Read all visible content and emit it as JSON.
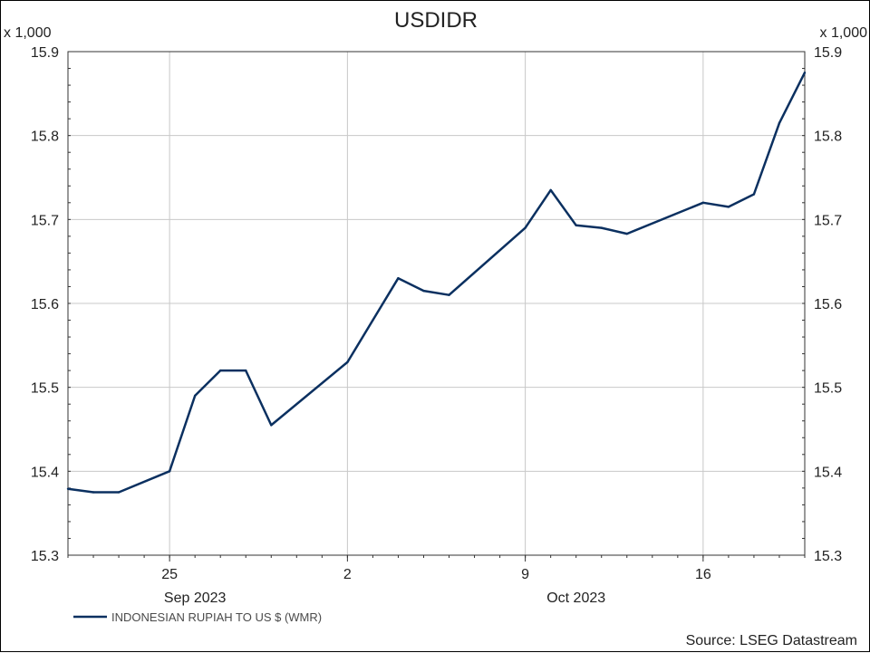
{
  "chart_data": {
    "type": "line",
    "title": "USDIDR",
    "y_multiplier_label": "x 1,000",
    "ylim": [
      15.3,
      15.9
    ],
    "y_ticks": [
      "15.3",
      "15.4",
      "15.5",
      "15.6",
      "15.7",
      "15.8",
      "15.9"
    ],
    "xlim": [
      "2023-09-21",
      "2023-10-20"
    ],
    "x_ticks": [
      {
        "date": "2023-09-25",
        "label": "25"
      },
      {
        "date": "2023-10-02",
        "label": "2"
      },
      {
        "date": "2023-10-09",
        "label": "9"
      },
      {
        "date": "2023-10-16",
        "label": "16"
      }
    ],
    "month_labels": [
      {
        "date": "2023-09-26",
        "label": "Sep 2023"
      },
      {
        "date": "2023-10-11",
        "label": "Oct 2023"
      }
    ],
    "grid": true,
    "legend_position": "bottom-left",
    "series": [
      {
        "name": "INDONESIAN RUPIAH TO US $ (WMR)",
        "color": "#0b3060",
        "points": [
          {
            "x": "2023-09-21",
            "y": 15.379
          },
          {
            "x": "2023-09-22",
            "y": 15.375
          },
          {
            "x": "2023-09-23",
            "y": 15.375
          },
          {
            "x": "2023-09-25",
            "y": 15.4
          },
          {
            "x": "2023-09-26",
            "y": 15.49
          },
          {
            "x": "2023-09-27",
            "y": 15.52
          },
          {
            "x": "2023-09-28",
            "y": 15.52
          },
          {
            "x": "2023-09-29",
            "y": 15.455
          },
          {
            "x": "2023-10-02",
            "y": 15.53
          },
          {
            "x": "2023-10-03",
            "y": 15.58
          },
          {
            "x": "2023-10-04",
            "y": 15.63
          },
          {
            "x": "2023-10-05",
            "y": 15.615
          },
          {
            "x": "2023-10-06",
            "y": 15.61
          },
          {
            "x": "2023-10-09",
            "y": 15.69
          },
          {
            "x": "2023-10-10",
            "y": 15.735
          },
          {
            "x": "2023-10-11",
            "y": 15.693
          },
          {
            "x": "2023-10-12",
            "y": 15.69
          },
          {
            "x": "2023-10-13",
            "y": 15.683
          },
          {
            "x": "2023-10-16",
            "y": 15.72
          },
          {
            "x": "2023-10-17",
            "y": 15.715
          },
          {
            "x": "2023-10-18",
            "y": 15.73
          },
          {
            "x": "2023-10-19",
            "y": 15.815
          },
          {
            "x": "2023-10-20",
            "y": 15.875
          }
        ]
      }
    ],
    "source": "Source: LSEG Datastream"
  }
}
